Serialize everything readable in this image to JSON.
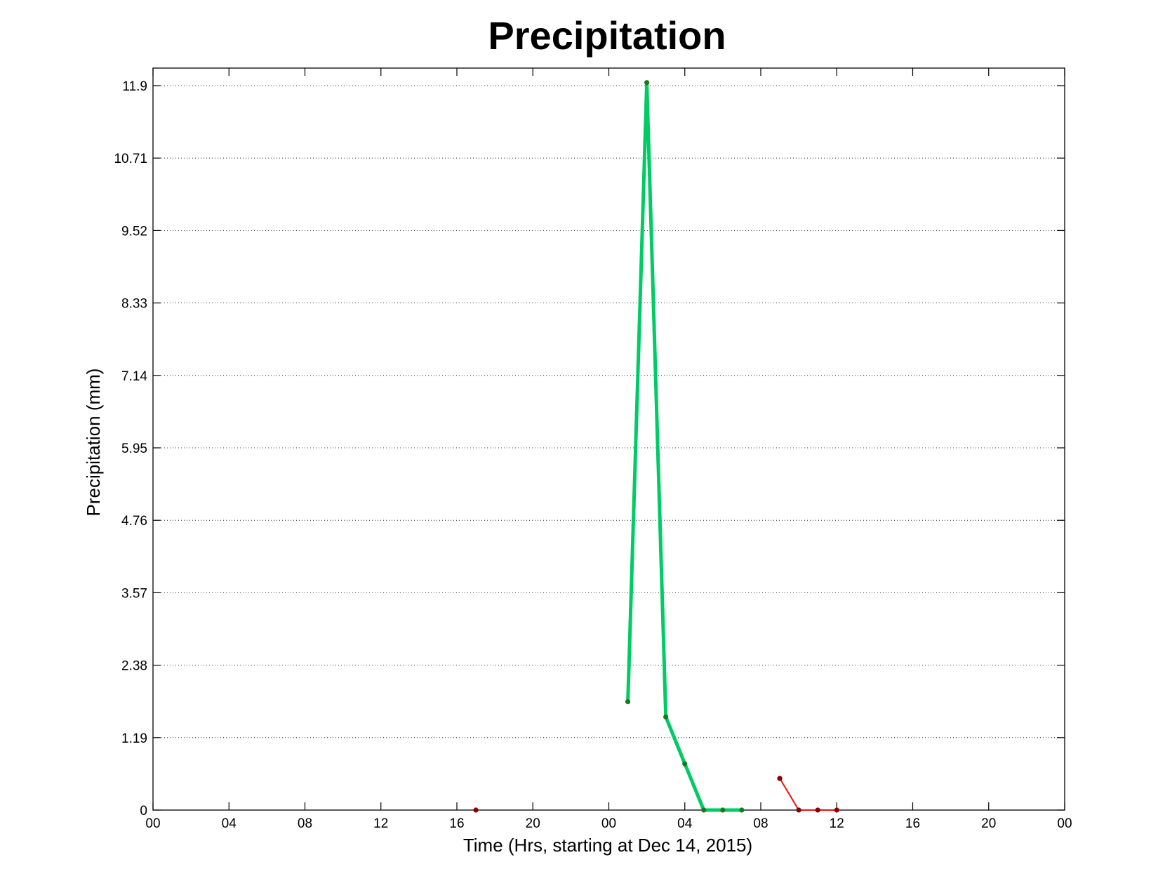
{
  "chart_data": {
    "type": "line",
    "title": "Precipitation",
    "xlabel": "Time (Hrs, starting at Dec 14, 2015)",
    "ylabel": "Precipitation (mm)",
    "x_unit": "hours since Dec 14, 2015 00:00",
    "xlim": [
      0,
      48
    ],
    "ylim": [
      0,
      11.9
    ],
    "x_ticks": [
      0,
      4,
      8,
      12,
      16,
      20,
      24,
      28,
      32,
      36,
      40,
      44,
      48
    ],
    "x_tick_labels": [
      "00",
      "04",
      "08",
      "12",
      "16",
      "20",
      "00",
      "04",
      "08",
      "12",
      "16",
      "20",
      "00"
    ],
    "y_ticks": [
      0,
      1.19,
      2.38,
      3.57,
      4.76,
      5.95,
      7.14,
      8.33,
      9.52,
      10.71,
      11.9
    ],
    "y_tick_labels": [
      "0",
      "1.19",
      "2.38",
      "3.57",
      "4.76",
      "5.95",
      "7.14",
      "8.33",
      "9.52",
      "10.71",
      "11.9"
    ],
    "grid": "horizontal dotted",
    "series": [
      {
        "color": "#00cc66",
        "marker_color": "#1a7a1a",
        "line_width": 5,
        "segments": [
          [
            [
              25,
              1.78
            ],
            [
              26,
              11.95
            ],
            [
              27,
              1.53
            ],
            [
              28,
              0.76
            ],
            [
              29,
              0
            ],
            [
              30,
              0
            ],
            [
              31,
              0
            ]
          ],
          [
            [
              33,
              0.52
            ]
          ]
        ]
      },
      {
        "color": "#ee1111",
        "marker_color": "#8b0000",
        "line_width": 2,
        "segments": [
          [
            [
              17,
              0
            ]
          ],
          [
            [
              33,
              0.52
            ],
            [
              34,
              0
            ],
            [
              35,
              0
            ],
            [
              36,
              0
            ]
          ]
        ]
      }
    ]
  }
}
